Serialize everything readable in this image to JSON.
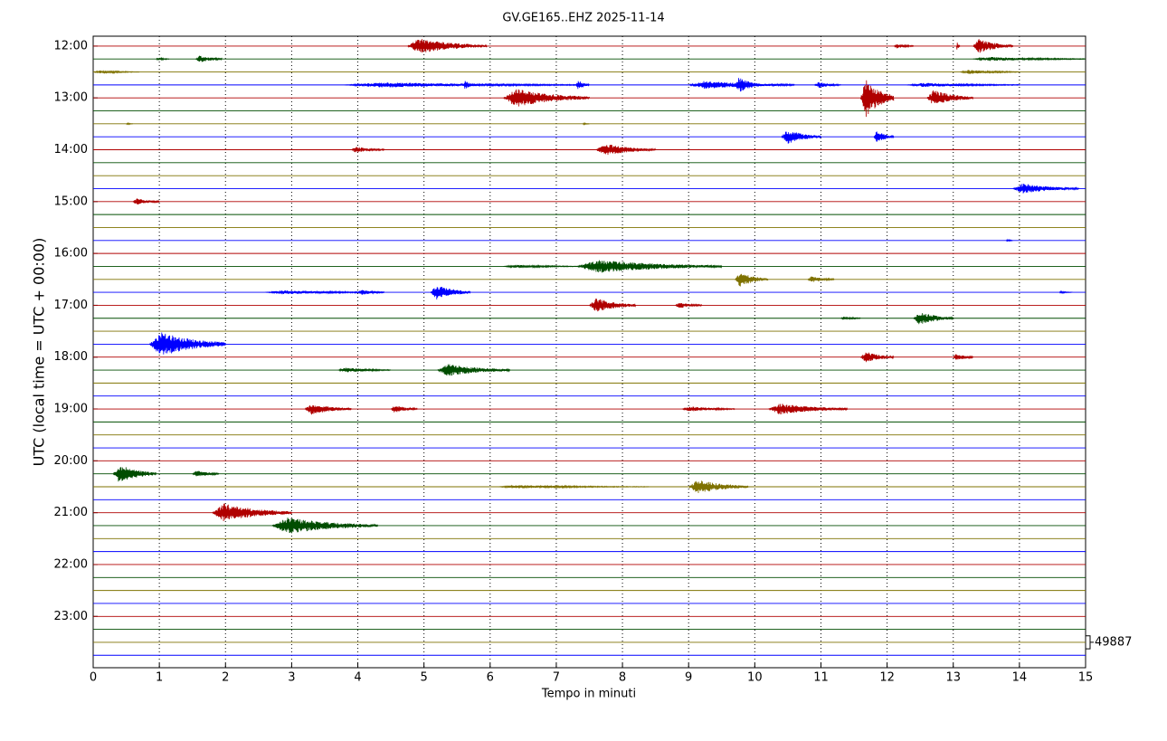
{
  "chart_data": {
    "type": "helicorder",
    "title": "GV.GE165..EHZ 2025-11-14",
    "xlabel": "Tempo in minuti",
    "ylabel": "UTC (local time = UTC + 00:00)",
    "xlim": [
      0,
      15
    ],
    "xticks": [
      0,
      1,
      2,
      3,
      4,
      5,
      6,
      7,
      8,
      9,
      10,
      11,
      12,
      13,
      14,
      15
    ],
    "ylim": [
      11.81,
      23.99
    ],
    "yticks": [
      {
        "value": 12,
        "label": "12:00"
      },
      {
        "value": 13,
        "label": "13:00"
      },
      {
        "value": 14,
        "label": "14:00"
      },
      {
        "value": 15,
        "label": "15:00"
      },
      {
        "value": 16,
        "label": "16:00"
      },
      {
        "value": 17,
        "label": "17:00"
      },
      {
        "value": 18,
        "label": "18:00"
      },
      {
        "value": 19,
        "label": "19:00"
      },
      {
        "value": 20,
        "label": "20:00"
      },
      {
        "value": 21,
        "label": "21:00"
      },
      {
        "value": 22,
        "label": "22:00"
      },
      {
        "value": 23,
        "label": "23:00"
      }
    ],
    "colors": [
      "#b00000",
      "#004d00",
      "#7f7200",
      "#0000ff"
    ],
    "grid": true,
    "traces": [
      12,
      12.25,
      12.5,
      12.75,
      13,
      13.25,
      13.5,
      13.75,
      14,
      14.25,
      14.5,
      14.75,
      15,
      15.25,
      15.5,
      15.75,
      16,
      16.25,
      16.5,
      16.75,
      17,
      17.25,
      17.5,
      17.75,
      18,
      18.25,
      18.5,
      18.75,
      19,
      19.25,
      19.5,
      19.75,
      20,
      20.25,
      20.5,
      20.75,
      21,
      21.25,
      21.5,
      21.75,
      22,
      22.25,
      22.5,
      22.75,
      23,
      23.25,
      23.5,
      23.75
    ],
    "scale": {
      "row": 23.5,
      "value": 49887
    },
    "events": [
      {
        "row": 12,
        "x": [
          4.75,
          5.95
        ],
        "amp": 0.15
      },
      {
        "row": 12,
        "x": [
          12.1,
          12.4
        ],
        "amp": 0.05
      },
      {
        "row": 12,
        "x": [
          13.05,
          13.1
        ],
        "amp": 0.1
      },
      {
        "row": 12,
        "x": [
          13.3,
          13.9
        ],
        "amp": 0.14
      },
      {
        "row": 12.25,
        "x": [
          0.95,
          1.15
        ],
        "amp": 0.03
      },
      {
        "row": 12.25,
        "x": [
          1.55,
          1.95
        ],
        "amp": 0.07
      },
      {
        "row": 12.25,
        "x": [
          13.3,
          15
        ],
        "amp": 0.04
      },
      {
        "row": 12.5,
        "x": [
          0,
          0.7
        ],
        "amp": 0.03
      },
      {
        "row": 12.5,
        "x": [
          13.1,
          14
        ],
        "amp": 0.04
      },
      {
        "row": 12.75,
        "x": [
          3.8,
          7.5
        ],
        "amp": 0.05
      },
      {
        "row": 12.75,
        "x": [
          5.6,
          5.75
        ],
        "amp": 0.1
      },
      {
        "row": 12.75,
        "x": [
          7.3,
          7.5
        ],
        "amp": 0.1
      },
      {
        "row": 12.75,
        "x": [
          9,
          10.6
        ],
        "amp": 0.08
      },
      {
        "row": 12.75,
        "x": [
          9.7,
          10.1
        ],
        "amp": 0.15
      },
      {
        "row": 12.75,
        "x": [
          10.9,
          11.3
        ],
        "amp": 0.06
      },
      {
        "row": 12.75,
        "x": [
          12.3,
          14
        ],
        "amp": 0.04
      },
      {
        "row": 13,
        "x": [
          6.2,
          7.5
        ],
        "amp": 0.18
      },
      {
        "row": 13,
        "x": [
          11.6,
          12.1
        ],
        "amp": 0.38
      },
      {
        "row": 13,
        "x": [
          12.6,
          13.3
        ],
        "amp": 0.16
      },
      {
        "row": 13.5,
        "x": [
          0.5,
          0.6
        ],
        "amp": 0.02
      },
      {
        "row": 13.5,
        "x": [
          7.4,
          7.5
        ],
        "amp": 0.02
      },
      {
        "row": 13.75,
        "x": [
          10.4,
          11
        ],
        "amp": 0.14
      },
      {
        "row": 13.75,
        "x": [
          11.8,
          12.1
        ],
        "amp": 0.12
      },
      {
        "row": 14,
        "x": [
          3.9,
          4.4
        ],
        "amp": 0.06
      },
      {
        "row": 14,
        "x": [
          7.6,
          8.5
        ],
        "amp": 0.12
      },
      {
        "row": 14.75,
        "x": [
          13.9,
          14.9
        ],
        "amp": 0.1
      },
      {
        "row": 15,
        "x": [
          0.6,
          1
        ],
        "amp": 0.07
      },
      {
        "row": 15.75,
        "x": [
          13.8,
          13.9
        ],
        "amp": 0.03
      },
      {
        "row": 16.25,
        "x": [
          6.2,
          7.4
        ],
        "amp": 0.03
      },
      {
        "row": 16.25,
        "x": [
          7.3,
          9.5
        ],
        "amp": 0.13
      },
      {
        "row": 16.5,
        "x": [
          9.7,
          10.2
        ],
        "amp": 0.14
      },
      {
        "row": 16.5,
        "x": [
          10.8,
          11.2
        ],
        "amp": 0.06
      },
      {
        "row": 16.75,
        "x": [
          2.6,
          4.4
        ],
        "amp": 0.04
      },
      {
        "row": 16.75,
        "x": [
          4,
          4.4
        ],
        "amp": 0.05
      },
      {
        "row": 16.75,
        "x": [
          5.1,
          5.7
        ],
        "amp": 0.15
      },
      {
        "row": 16.75,
        "x": [
          14.6,
          14.8
        ],
        "amp": 0.02
      },
      {
        "row": 17,
        "x": [
          7.5,
          8.2
        ],
        "amp": 0.14
      },
      {
        "row": 17,
        "x": [
          8.8,
          9.2
        ],
        "amp": 0.06
      },
      {
        "row": 17.25,
        "x": [
          11.3,
          11.6
        ],
        "amp": 0.04
      },
      {
        "row": 17.25,
        "x": [
          12.4,
          13
        ],
        "amp": 0.13
      },
      {
        "row": 17.75,
        "x": [
          0.85,
          2
        ],
        "amp": 0.24
      },
      {
        "row": 18,
        "x": [
          11.6,
          12.1
        ],
        "amp": 0.11
      },
      {
        "row": 18,
        "x": [
          13,
          13.3
        ],
        "amp": 0.08
      },
      {
        "row": 18.25,
        "x": [
          3.7,
          4.5
        ],
        "amp": 0.05
      },
      {
        "row": 18.25,
        "x": [
          5.2,
          6.3
        ],
        "amp": 0.12
      },
      {
        "row": 19,
        "x": [
          3.2,
          3.9
        ],
        "amp": 0.11
      },
      {
        "row": 19,
        "x": [
          4.5,
          4.9
        ],
        "amp": 0.08
      },
      {
        "row": 19,
        "x": [
          8.9,
          9.7
        ],
        "amp": 0.05
      },
      {
        "row": 19,
        "x": [
          10.2,
          11.4
        ],
        "amp": 0.11
      },
      {
        "row": 20.25,
        "x": [
          0.3,
          0.95
        ],
        "amp": 0.18
      },
      {
        "row": 20.25,
        "x": [
          1.5,
          1.9
        ],
        "amp": 0.07
      },
      {
        "row": 20.5,
        "x": [
          6.1,
          8.4
        ],
        "amp": 0.03
      },
      {
        "row": 20.5,
        "x": [
          9,
          9.9
        ],
        "amp": 0.14
      },
      {
        "row": 21,
        "x": [
          1.8,
          3
        ],
        "amp": 0.18
      },
      {
        "row": 21.25,
        "x": [
          2.7,
          4.3
        ],
        "amp": 0.16
      }
    ]
  }
}
